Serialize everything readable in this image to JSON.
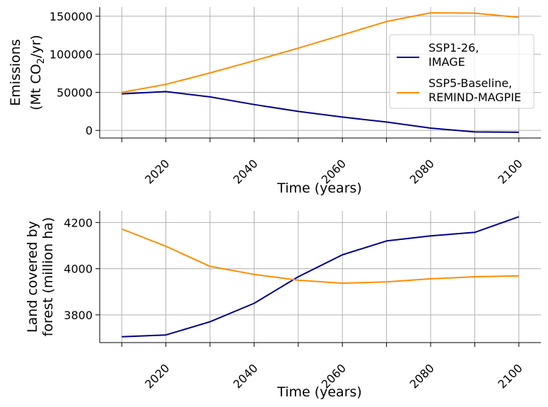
{
  "chart_data": [
    {
      "type": "line",
      "xlabel": "Time (years)",
      "ylabel_lines": [
        "Emissions",
        "(Mt CO",
        "2",
        "/yr)"
      ],
      "xlim": [
        2005,
        2105
      ],
      "ylim": [
        -10000,
        162000
      ],
      "xticks": [
        2010,
        2020,
        2030,
        2040,
        2050,
        2060,
        2070,
        2080,
        2090,
        2100
      ],
      "xticklabels": [
        "",
        "2020",
        "",
        "2040",
        "",
        "2060",
        "",
        "2080",
        "",
        "2100"
      ],
      "yticks": [
        0,
        50000,
        100000,
        150000
      ],
      "yticklabels": [
        "0",
        "50000",
        "100000",
        "150000"
      ],
      "grid": true,
      "legend_position": "center-right",
      "x": [
        2010,
        2020,
        2030,
        2040,
        2050,
        2060,
        2070,
        2080,
        2090,
        2100
      ],
      "series": [
        {
          "name": "SSP1-26,\nIMAGE",
          "name_lines": [
            "SSP1-26,",
            "IMAGE"
          ],
          "color": "#00008b",
          "values": [
            48000,
            51000,
            44000,
            34000,
            25000,
            17500,
            11000,
            3000,
            -2000,
            -2500
          ]
        },
        {
          "name": "SSP5-Baseline,\nREMIND-MAGPIE",
          "name_lines": [
            "SSP5-Baseline,",
            "REMIND-MAGPIE"
          ],
          "color": "#ff8c00",
          "values": [
            50000,
            60500,
            75500,
            91500,
            108000,
            125500,
            143000,
            154500,
            154000,
            148500
          ]
        }
      ]
    },
    {
      "type": "line",
      "xlabel": "Time (years)",
      "ylabel_lines": [
        "Land covered by",
        "forest (million ha)"
      ],
      "xlim": [
        2005,
        2105
      ],
      "ylim": [
        3680,
        4250
      ],
      "xticks": [
        2010,
        2020,
        2030,
        2040,
        2050,
        2060,
        2070,
        2080,
        2090,
        2100
      ],
      "xticklabels": [
        "",
        "2020",
        "",
        "2040",
        "",
        "2060",
        "",
        "2080",
        "",
        "2100"
      ],
      "yticks": [
        3800,
        4000,
        4200
      ],
      "yticklabels": [
        "3800",
        "4000",
        "4200"
      ],
      "grid": true,
      "x": [
        2010,
        2020,
        2030,
        2040,
        2050,
        2060,
        2070,
        2080,
        2090,
        2100
      ],
      "series": [
        {
          "color": "#00008b",
          "values": [
            3705,
            3713,
            3770,
            3850,
            3965,
            4060,
            4120,
            4142,
            4157,
            4225
          ]
        },
        {
          "color": "#ff8c00",
          "values": [
            4172,
            4097,
            4010,
            3975,
            3950,
            3937,
            3943,
            3956,
            3965,
            3969
          ]
        }
      ]
    }
  ]
}
